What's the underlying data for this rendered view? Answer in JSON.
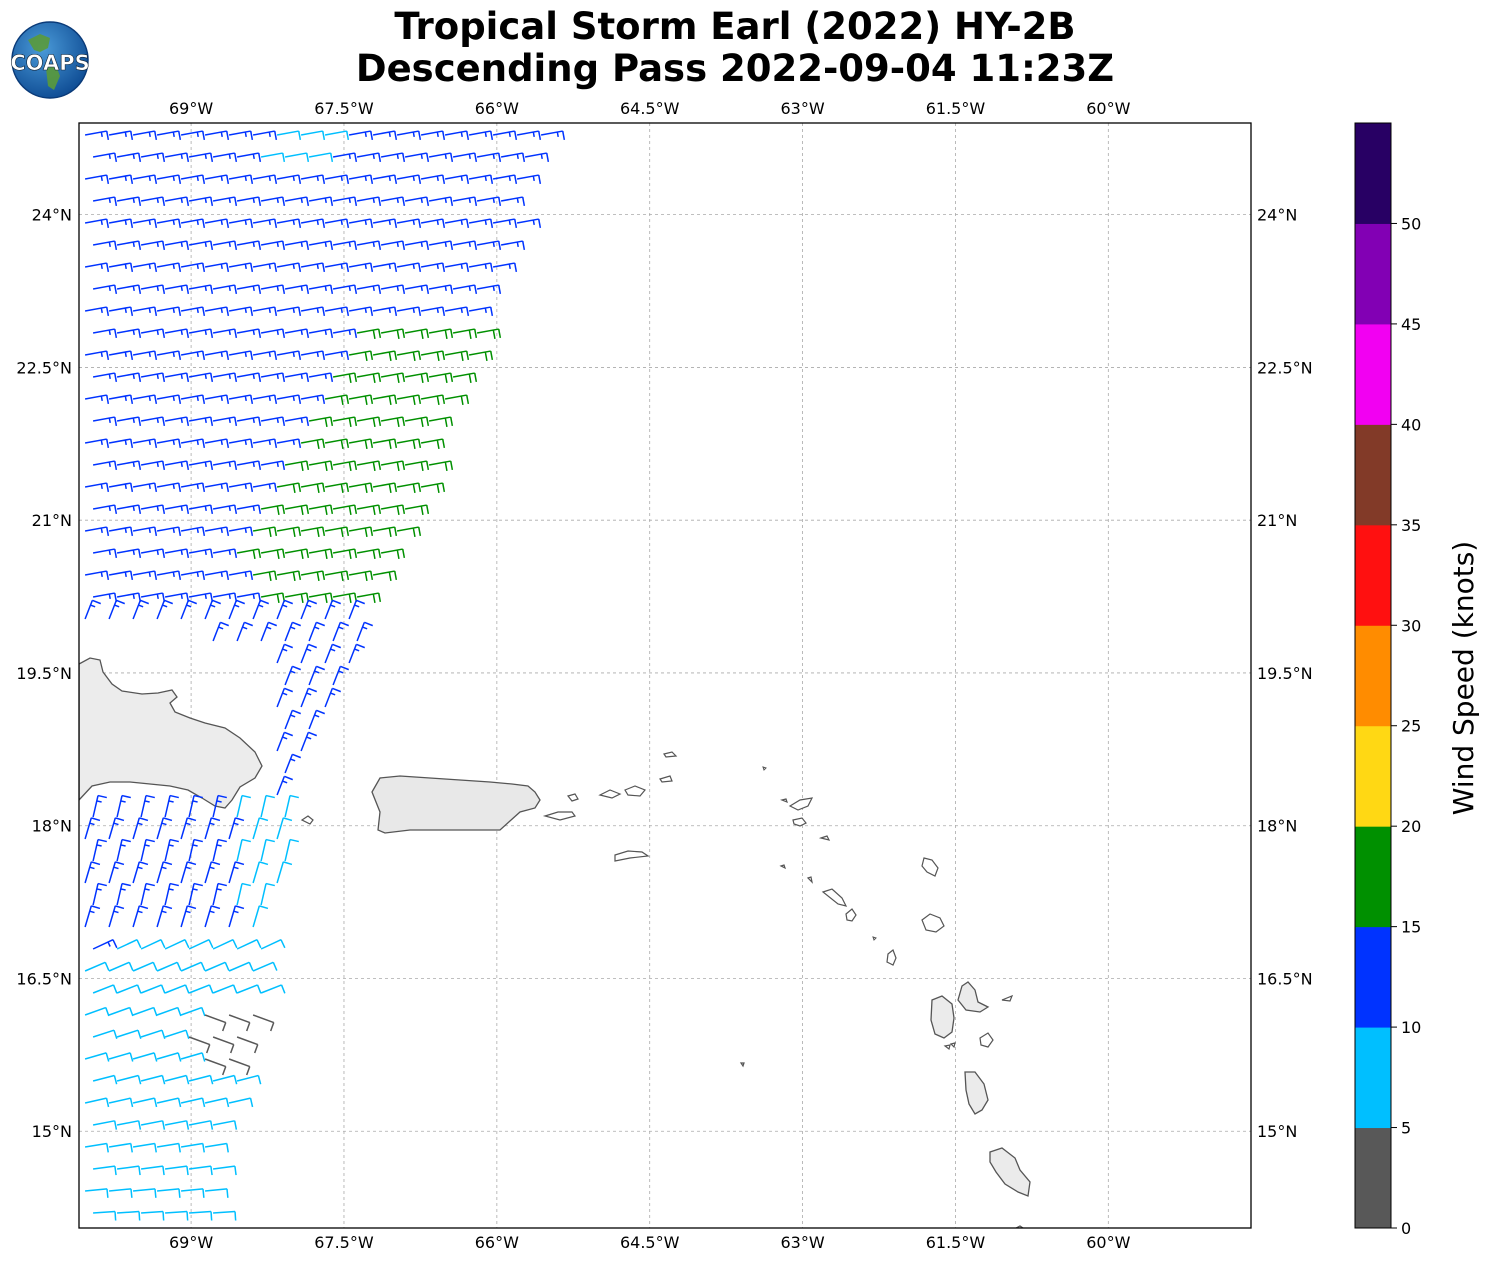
{
  "title": {
    "line1": "Tropical Storm Earl (2022) HY-2B",
    "line2": "Descending Pass 2022-09-04 11:23Z"
  },
  "logo": {
    "text": "COAPS"
  },
  "map": {
    "lon_range": [
      -70.1,
      -58.6
    ],
    "lat_range": [
      14.05,
      24.9
    ],
    "lon_ticks": [
      {
        "value": -69.0,
        "label": "69°W"
      },
      {
        "value": -67.5,
        "label": "67.5°W"
      },
      {
        "value": -66.0,
        "label": "66°W"
      },
      {
        "value": -64.5,
        "label": "64.5°W"
      },
      {
        "value": -63.0,
        "label": "63°W"
      },
      {
        "value": -61.5,
        "label": "61.5°W"
      },
      {
        "value": -60.0,
        "label": "60°W"
      }
    ],
    "lat_ticks": [
      {
        "value": 24.0,
        "label": "24°N"
      },
      {
        "value": 22.5,
        "label": "22.5°N"
      },
      {
        "value": 21.0,
        "label": "21°N"
      },
      {
        "value": 19.5,
        "label": "19.5°N"
      },
      {
        "value": 18.0,
        "label": "18°N"
      },
      {
        "value": 16.5,
        "label": "16.5°N"
      },
      {
        "value": 15.0,
        "label": "15°N"
      }
    ],
    "grid": true
  },
  "colorbar": {
    "label": "Wind Speed (knots)",
    "ticks": [
      "0",
      "5",
      "10",
      "15",
      "20",
      "25",
      "30",
      "35",
      "40",
      "45",
      "50"
    ],
    "colors": [
      "#585858",
      "#00bfff",
      "#0033ff",
      "#009000",
      "#ffd814",
      "#ff8c00",
      "#ff1010",
      "#823a28",
      "#f200f2",
      "#8200b4",
      "#280064"
    ]
  }
}
